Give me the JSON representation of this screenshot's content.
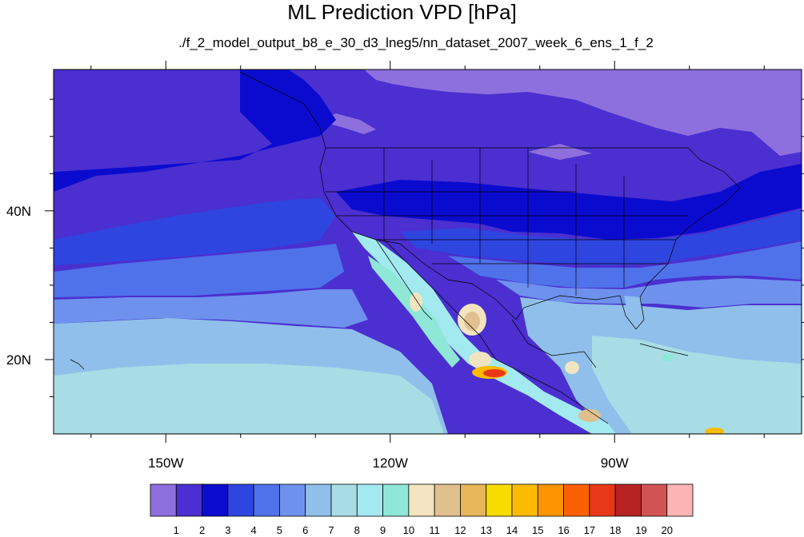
{
  "title": "ML Prediction VPD [hPa]",
  "subtitle": "./f_2_model_output_b8_e_30_d3_lneg5/nn_dataset_2007_week_6_ens_1_f_2",
  "map": {
    "lon_range": [
      -165,
      -65
    ],
    "lat_range": [
      10,
      59
    ],
    "x_ticks": [
      {
        "value": -150,
        "label": "150W"
      },
      {
        "value": -120,
        "label": "120W"
      },
      {
        "value": -90,
        "label": "90W"
      }
    ],
    "y_ticks": [
      {
        "value": 40,
        "label": "40N"
      },
      {
        "value": 20,
        "label": "20N"
      }
    ],
    "x_minor_ticks": [
      -160,
      -140,
      -130,
      -110,
      -100,
      -80,
      -70
    ],
    "y_minor_ticks": [
      15,
      25,
      30,
      35,
      45,
      50,
      55
    ]
  },
  "colorbar": {
    "colors": [
      "#8d6fde",
      "#4b2fd0",
      "#0b0bd0",
      "#2f45e0",
      "#4f72ea",
      "#6e91ed",
      "#8fbfea",
      "#a9dde6",
      "#a2eaf0",
      "#8fe7d8",
      "#f2e4c0",
      "#e1c08f",
      "#e7b65a",
      "#f8dc00",
      "#fcbb00",
      "#fb9400",
      "#fb6000",
      "#e83818",
      "#b72222",
      "#d15454",
      "#fdb4b4"
    ],
    "labels": [
      "1",
      "2",
      "3",
      "4",
      "5",
      "6",
      "7",
      "8",
      "9",
      "10",
      "11",
      "12",
      "13",
      "14",
      "15",
      "16",
      "17",
      "18",
      "19",
      "20"
    ]
  }
}
